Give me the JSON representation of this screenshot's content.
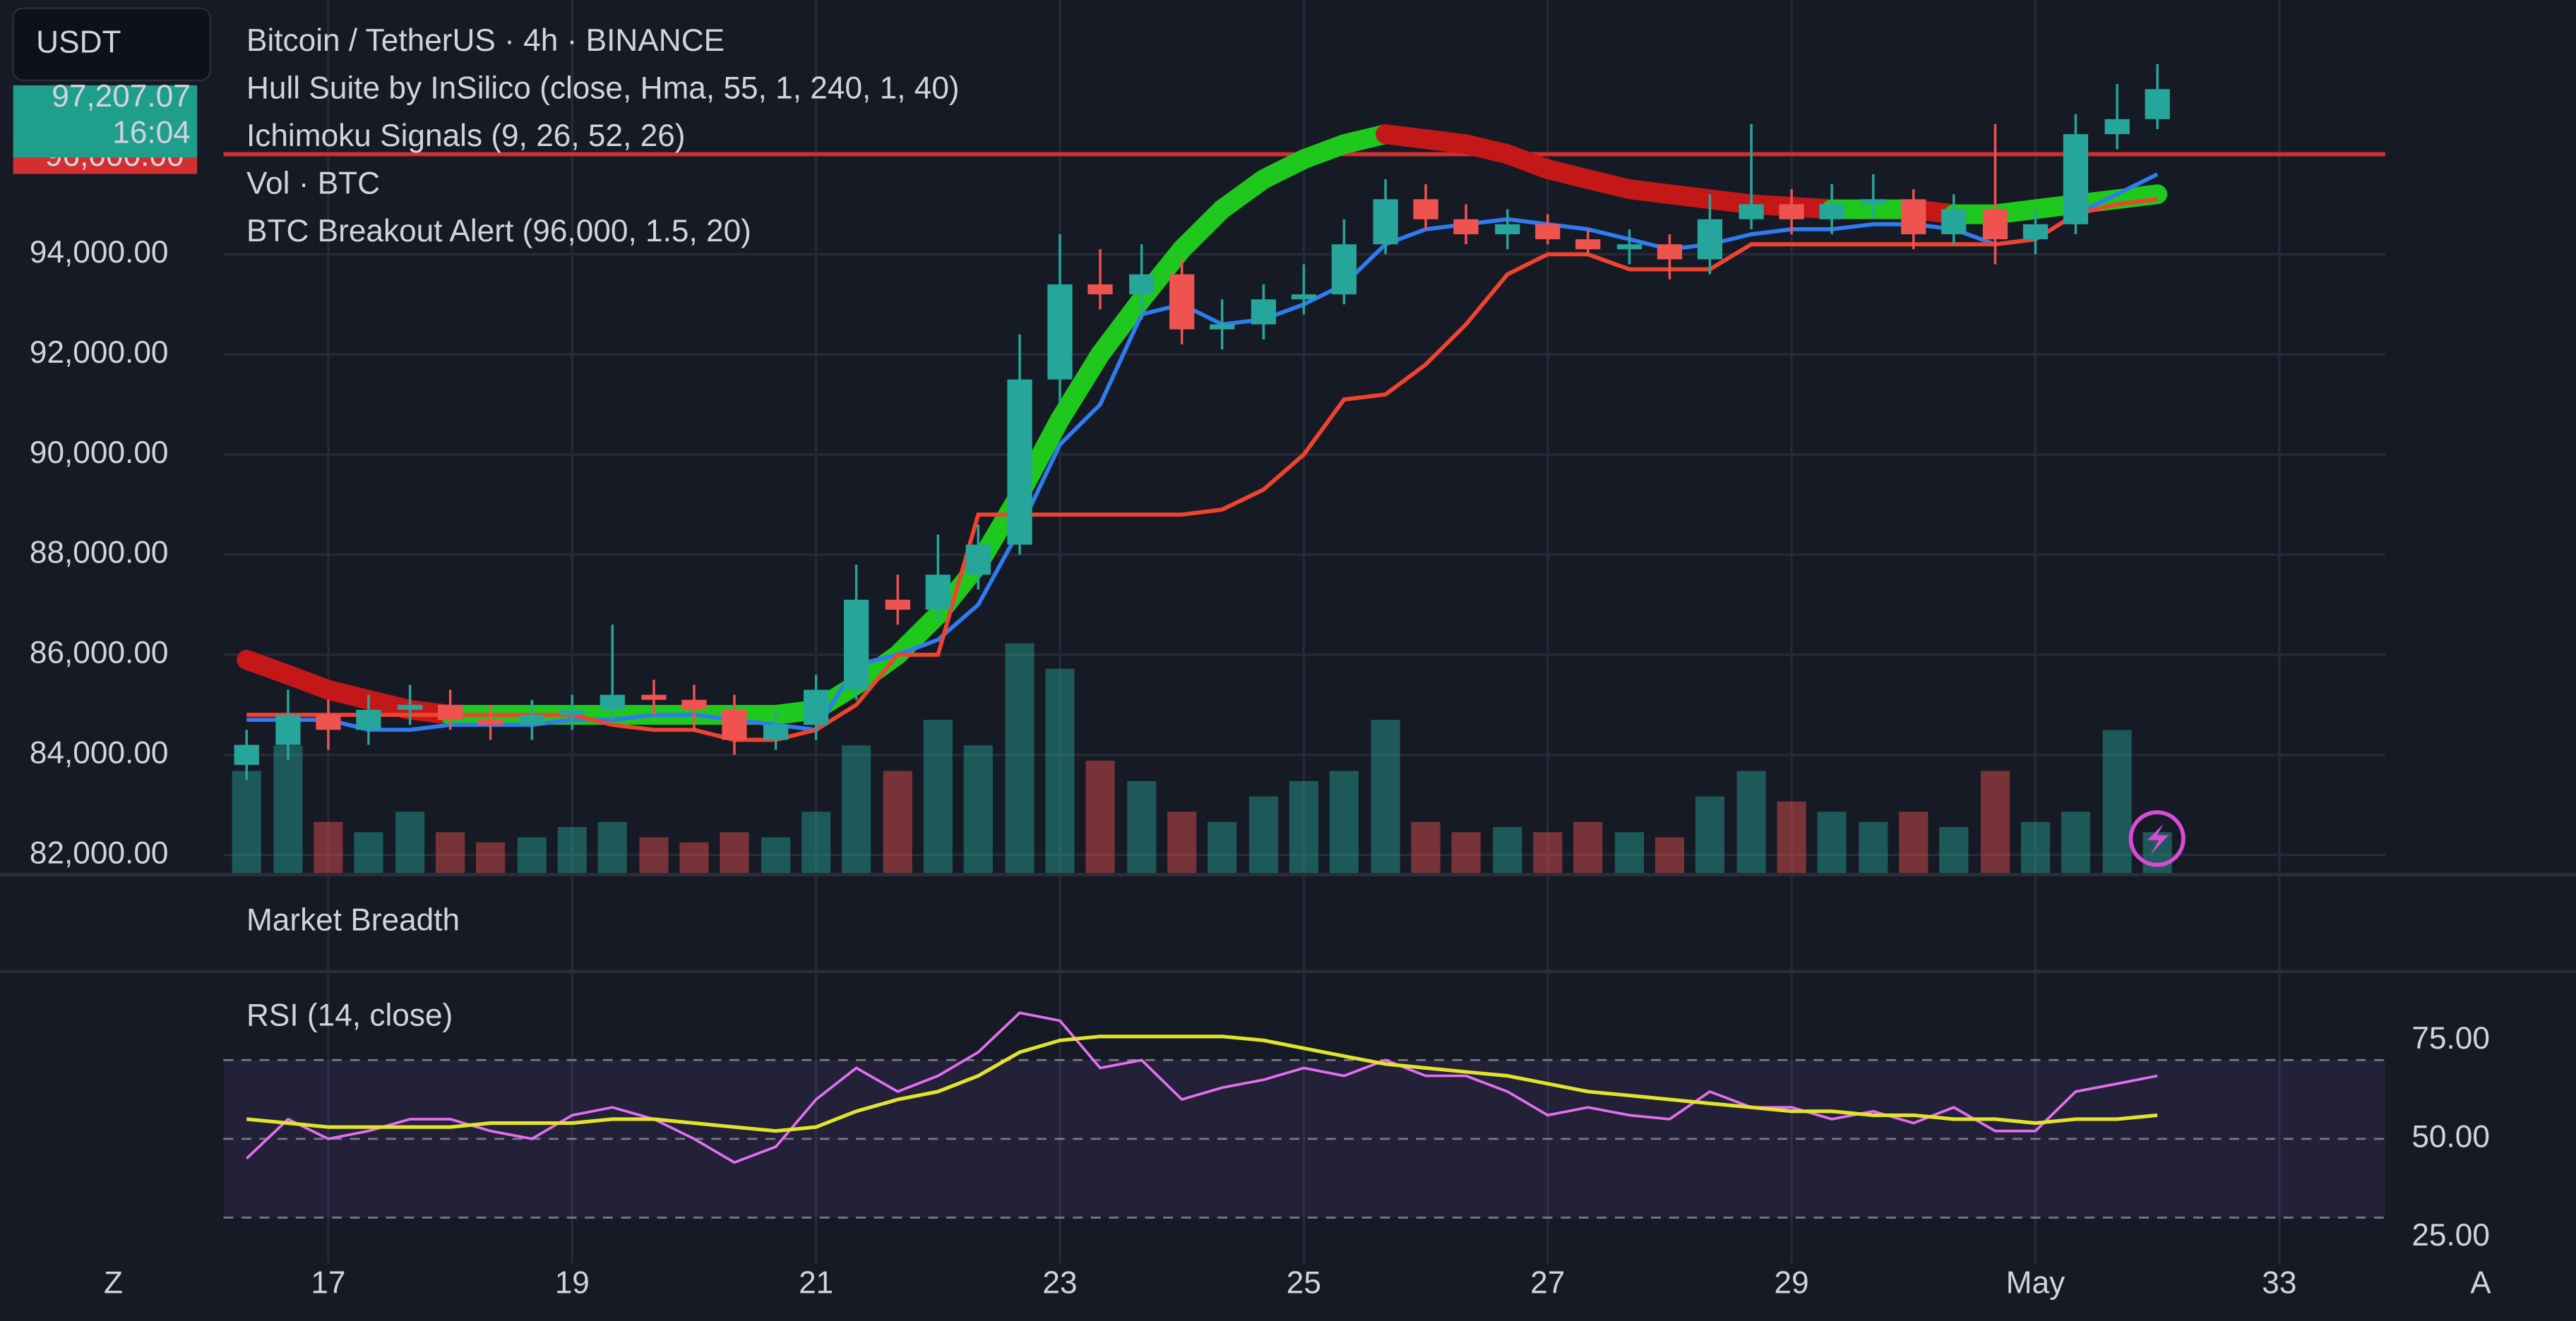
{
  "header": {
    "symbol_button": "USDT",
    "title": "Bitcoin / TetherUS · 4h · BINANCE",
    "indicators": [
      "Hull Suite by InSilico (close, Hma, 55, 1, 240, 1, 40)",
      "Ichimoku Signals (9, 26, 52, 26)",
      "Vol · BTC",
      "BTC Breakout Alert (96,000, 1.5, 20)"
    ],
    "price_tag": "97,207.07",
    "time_tag": "16:04",
    "level_tag": "96,000.00"
  },
  "breadth_pane_title": "Market Breadth",
  "bottom_buttons": [
    "Z",
    "A"
  ],
  "chart_data": [
    {
      "type": "candlestick",
      "x": [
        16.33,
        16.67,
        17,
        17.33,
        17.67,
        18,
        18.33,
        18.67,
        19,
        19.33,
        19.67,
        20,
        20.33,
        20.67,
        21,
        21.33,
        21.67,
        22,
        22.33,
        22.67,
        23,
        23.33,
        23.67,
        24,
        24.33,
        24.67,
        25,
        25.33,
        25.67,
        26,
        26.33,
        26.67,
        27,
        27.33,
        27.67,
        28,
        28.33,
        28.67,
        29,
        29.33,
        29.67,
        30,
        30.33,
        30.67,
        31,
        31.33,
        31.67,
        32
      ],
      "open": [
        83800,
        84200,
        84800,
        84500,
        84900,
        85000,
        84700,
        84600,
        84800,
        84900,
        85200,
        85100,
        84900,
        84300,
        84600,
        85300,
        87100,
        86900,
        87600,
        88200,
        91500,
        93400,
        93200,
        93600,
        92500,
        92600,
        93100,
        93200,
        94200,
        95100,
        94700,
        94400,
        94600,
        94300,
        94100,
        94200,
        93900,
        94700,
        95000,
        94700,
        95000,
        95100,
        94400,
        94900,
        94300,
        94600,
        96400,
        96700
      ],
      "high": [
        84500,
        85300,
        85100,
        85200,
        85400,
        85300,
        85000,
        85100,
        85200,
        86600,
        85500,
        85400,
        85200,
        84900,
        85600,
        87800,
        87600,
        88400,
        88600,
        92400,
        94400,
        94100,
        94200,
        93900,
        93100,
        93400,
        93800,
        94700,
        95500,
        95400,
        95000,
        94900,
        94800,
        94500,
        94500,
        94400,
        95200,
        96600,
        95300,
        95400,
        95600,
        95300,
        95200,
        96600,
        94900,
        96800,
        97400,
        97800
      ],
      "low": [
        83500,
        83900,
        84100,
        84200,
        84600,
        84500,
        84300,
        84300,
        84500,
        84700,
        84800,
        84500,
        84000,
        84100,
        84300,
        85100,
        86600,
        86700,
        87300,
        88000,
        91000,
        92900,
        92700,
        92200,
        92100,
        92300,
        92800,
        93000,
        94000,
        94500,
        94200,
        94100,
        94200,
        94000,
        93800,
        93500,
        93600,
        94500,
        94400,
        94400,
        94700,
        94100,
        94200,
        93800,
        94000,
        94400,
        96100,
        96500
      ],
      "close": [
        84200,
        84800,
        84500,
        84900,
        85000,
        84700,
        84600,
        84800,
        84900,
        85200,
        85100,
        84900,
        84300,
        84600,
        85300,
        87100,
        86900,
        87600,
        88200,
        91500,
        93400,
        93200,
        93600,
        92500,
        92600,
        93100,
        93200,
        94200,
        95100,
        94700,
        94400,
        94600,
        94300,
        94100,
        94200,
        93900,
        94700,
        95000,
        94700,
        95000,
        95100,
        94400,
        94900,
        94300,
        94600,
        96400,
        96700,
        97300
      ],
      "volume": [
        20,
        25,
        10,
        8,
        12,
        8,
        6,
        7,
        9,
        10,
        7,
        6,
        8,
        7,
        12,
        25,
        20,
        30,
        25,
        45,
        40,
        22,
        18,
        12,
        10,
        15,
        18,
        20,
        30,
        10,
        8,
        9,
        8,
        10,
        8,
        7,
        15,
        20,
        14,
        12,
        10,
        12,
        9,
        20,
        10,
        12,
        28,
        8
      ],
      "up_color": "#26a69a",
      "down_color": "#ef5350",
      "hull": {
        "color_up": "#1fc81c",
        "color_down": "#c41818",
        "values": [
          85900,
          85600,
          85300,
          85100,
          84900,
          84800,
          84800,
          84800,
          84800,
          84800,
          84800,
          84800,
          84800,
          84800,
          84900,
          85400,
          86000,
          86800,
          87800,
          89200,
          90700,
          92000,
          93100,
          94100,
          94900,
          95500,
          95900,
          96200,
          96400,
          96300,
          96200,
          96000,
          95700,
          95500,
          95300,
          95200,
          95100,
          95000,
          94950,
          94900,
          94900,
          94900,
          94800,
          94800,
          94900,
          95000,
          95100,
          95200
        ]
      },
      "overlays": [
        {
          "color": "#2f7bf0",
          "values": [
            84700,
            84700,
            84700,
            84500,
            84500,
            84600,
            84600,
            84600,
            84700,
            84700,
            84800,
            84800,
            84700,
            84600,
            84500,
            85800,
            86000,
            86300,
            87000,
            88500,
            90200,
            91000,
            92800,
            93000,
            92600,
            92700,
            93000,
            93400,
            94200,
            94500,
            94600,
            94700,
            94600,
            94500,
            94300,
            94100,
            94200,
            94400,
            94500,
            94500,
            94600,
            94600,
            94500,
            94200,
            94300,
            94800,
            95200,
            95600
          ]
        },
        {
          "color": "#f0432f",
          "values": [
            84800,
            84800,
            84800,
            84800,
            84800,
            84800,
            84800,
            84800,
            84800,
            84600,
            84500,
            84500,
            84300,
            84300,
            84500,
            85000,
            86000,
            86000,
            88800,
            88800,
            88800,
            88800,
            88800,
            88800,
            88900,
            89300,
            90000,
            91100,
            91200,
            91800,
            92600,
            93600,
            94000,
            94000,
            93700,
            93700,
            93700,
            94200,
            94200,
            94200,
            94200,
            94200,
            94200,
            94200,
            94300,
            94800,
            95000,
            95100
          ]
        }
      ],
      "alert_level": 96000,
      "alert_color": "#d32f2f",
      "xlim": [
        16.14,
        33.87
      ],
      "xticks": [
        17,
        19,
        21,
        23,
        25,
        27,
        29,
        {
          "value": 31,
          "label": "May"
        },
        33
      ],
      "ylim": [
        81640,
        99080
      ],
      "yticks": [
        {
          "value": 82000,
          "label": "82,000.00"
        },
        {
          "value": 84000,
          "label": "84,000.00"
        },
        {
          "value": 86000,
          "label": "86,000.00"
        },
        {
          "value": 88000,
          "label": "88,000.00"
        },
        {
          "value": 90000,
          "label": "90,000.00"
        },
        {
          "value": 92000,
          "label": "92,000.00"
        },
        {
          "value": 94000,
          "label": "94,000.00"
        }
      ]
    },
    {
      "type": "line",
      "title": "RSI (14, close)",
      "x": [
        16.33,
        16.67,
        17,
        17.33,
        17.67,
        18,
        18.33,
        18.67,
        19,
        19.33,
        19.67,
        20,
        20.33,
        20.67,
        21,
        21.33,
        21.67,
        22,
        22.33,
        22.67,
        23,
        23.33,
        23.67,
        24,
        24.33,
        24.67,
        25,
        25.33,
        25.67,
        26,
        26.33,
        26.67,
        27,
        27.33,
        27.67,
        28,
        28.33,
        28.67,
        29,
        29.33,
        29.67,
        30,
        30.33,
        30.67,
        31,
        31.33,
        31.67,
        32
      ],
      "series": [
        {
          "color": "#e36ff0",
          "values": [
            45,
            55,
            50,
            52,
            55,
            55,
            52,
            50,
            56,
            58,
            55,
            50,
            44,
            48,
            60,
            68,
            62,
            66,
            72,
            82,
            80,
            68,
            70,
            60,
            63,
            65,
            68,
            66,
            70,
            66,
            66,
            62,
            56,
            58,
            56,
            55,
            62,
            58,
            58,
            55,
            57,
            54,
            58,
            52,
            52,
            62,
            64,
            66
          ]
        },
        {
          "color": "#e3e42a",
          "values": [
            55,
            54,
            53,
            53,
            53,
            53,
            54,
            54,
            54,
            55,
            55,
            54,
            53,
            52,
            53,
            57,
            60,
            62,
            66,
            72,
            75,
            76,
            76,
            76,
            76,
            75,
            73,
            71,
            69,
            68,
            67,
            66,
            64,
            62,
            61,
            60,
            59,
            58,
            57,
            57,
            56,
            56,
            55,
            55,
            54,
            55,
            55,
            56
          ]
        }
      ],
      "levels": [
        30,
        50,
        70
      ],
      "ylim": [
        18,
        90
      ],
      "yticks": [
        {
          "value": 25,
          "label": "25.00"
        },
        {
          "value": 50,
          "label": "50.00"
        },
        {
          "value": 75,
          "label": "75.00"
        }
      ]
    }
  ]
}
